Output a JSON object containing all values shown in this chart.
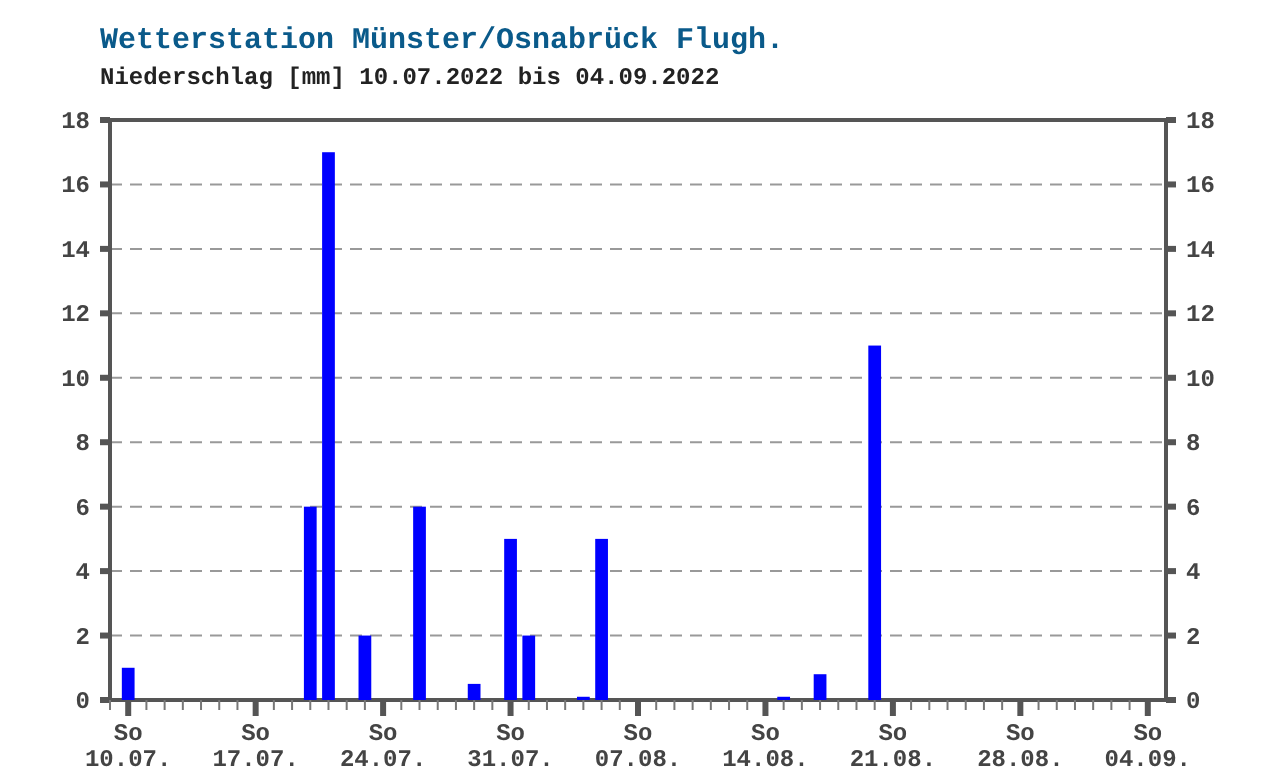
{
  "chart_data": {
    "type": "bar",
    "title": "Wetterstation Münster/Osnabrück Flugh.",
    "subtitle": "Niederschlag [mm] 10.07.2022 bis 04.09.2022",
    "x": [
      "2022-07-10",
      "2022-07-20",
      "2022-07-21",
      "2022-07-23",
      "2022-07-26",
      "2022-07-29",
      "2022-07-31",
      "2022-08-01",
      "2022-08-04",
      "2022-08-05",
      "2022-08-15",
      "2022-08-17",
      "2022-08-20"
    ],
    "values": [
      1,
      6,
      17,
      2,
      6,
      0.5,
      5,
      2,
      0.1,
      5,
      0.1,
      0.8,
      11
    ],
    "color": "#0000ff",
    "xlim": [
      "2022-07-09",
      "2022-09-05"
    ],
    "xticks": [
      {
        "value": "2022-07-10",
        "label": "So\n10.07."
      },
      {
        "value": "2022-07-17",
        "label": "So\n17.07."
      },
      {
        "value": "2022-07-24",
        "label": "So\n24.07."
      },
      {
        "value": "2022-07-31",
        "label": "So\n31.07."
      },
      {
        "value": "2022-08-07",
        "label": "So\n07.08."
      },
      {
        "value": "2022-08-14",
        "label": "So\n14.08."
      },
      {
        "value": "2022-08-21",
        "label": "So\n21.08."
      },
      {
        "value": "2022-08-28",
        "label": "So\n28.08."
      },
      {
        "value": "2022-09-04",
        "label": "So\n04.09."
      }
    ],
    "ylim": [
      0,
      18
    ],
    "yticks": [
      0,
      2,
      4,
      6,
      8,
      10,
      12,
      14,
      16,
      18
    ],
    "y2lim": [
      0,
      18
    ],
    "y2ticks": [
      0,
      2,
      4,
      6,
      8,
      10,
      12,
      14,
      16,
      18
    ],
    "grid": "y"
  }
}
